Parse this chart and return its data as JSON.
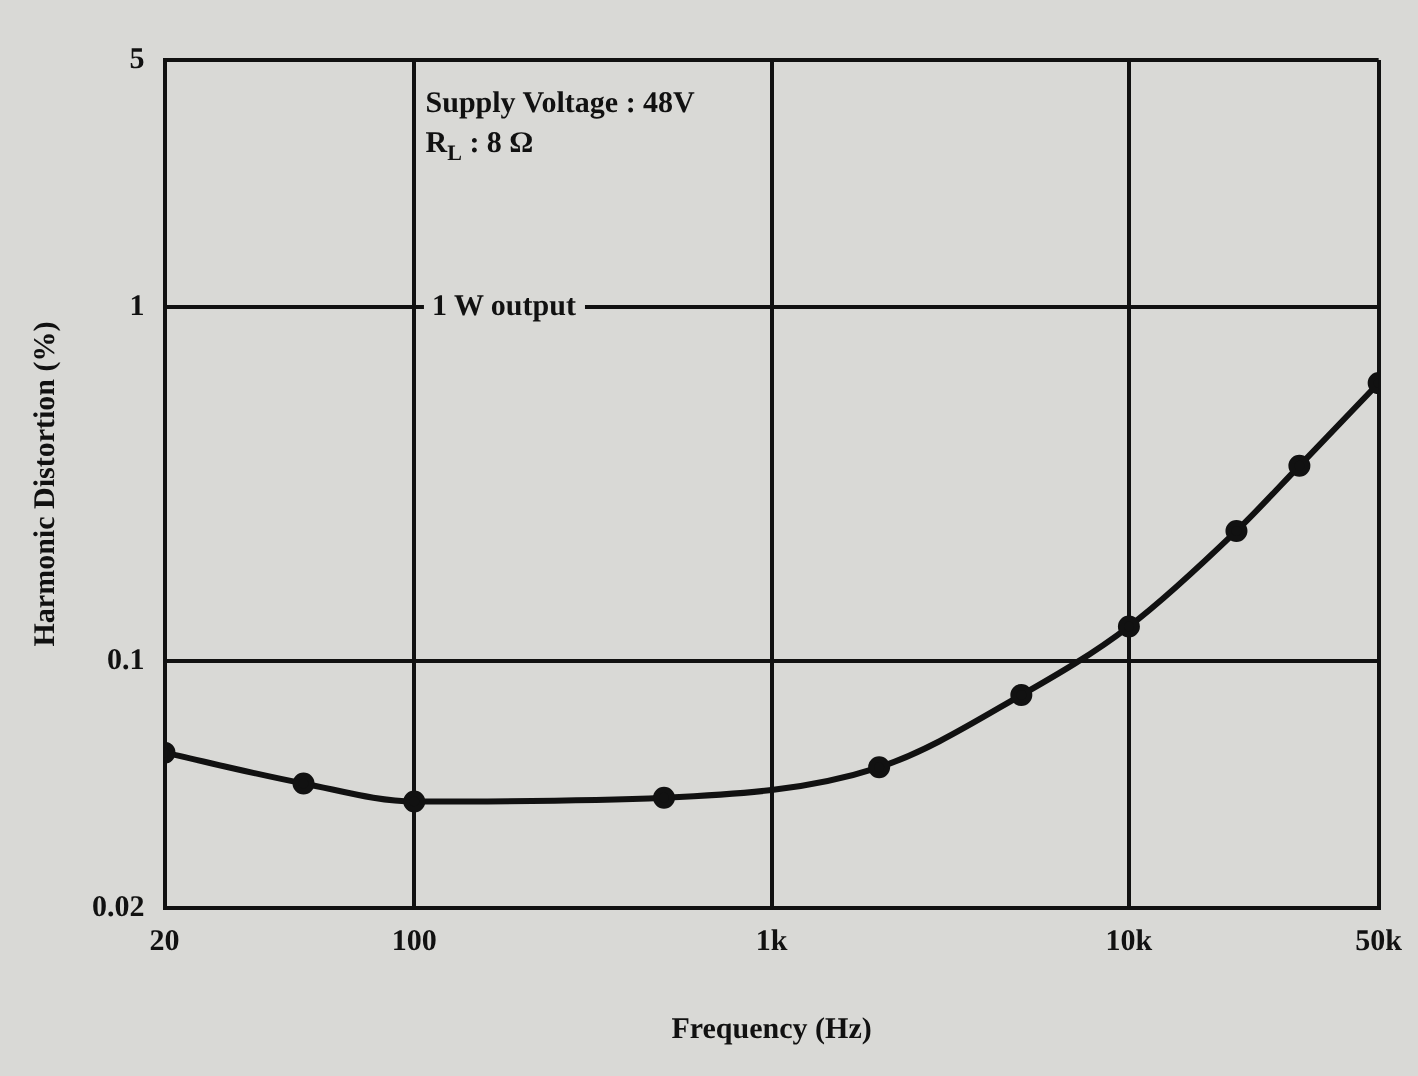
{
  "chart_data": {
    "type": "line",
    "xlabel": "Frequency (Hz)",
    "ylabel": "Harmonic Distortion (%)",
    "annotations": [
      "Supply Voltage : 48V",
      "R$_{L}$ : 8 Ω",
      "1 W output"
    ],
    "x": [
      20,
      49,
      100,
      500,
      2000,
      5000,
      10000,
      20000,
      30000,
      50000
    ],
    "series": [
      {
        "color": "#111111",
        "values": [
          0.055,
          0.045,
          0.04,
          0.041,
          0.05,
          0.08,
          0.125,
          0.233,
          0.356,
          0.61
        ]
      }
    ],
    "xlim": [
      20,
      50000
    ],
    "ylim": [
      0.02,
      5
    ],
    "xticks": [
      20,
      100,
      {
        "value": 1000,
        "label": "1k"
      },
      {
        "value": 10000,
        "label": "10k"
      },
      {
        "value": 50000,
        "label": "50k"
      }
    ],
    "yticks": [
      0.02,
      0.1,
      1,
      5
    ],
    "log": "xy",
    "grid": true,
    "legend": false,
    "marker": "circle",
    "line_style": "solid"
  }
}
